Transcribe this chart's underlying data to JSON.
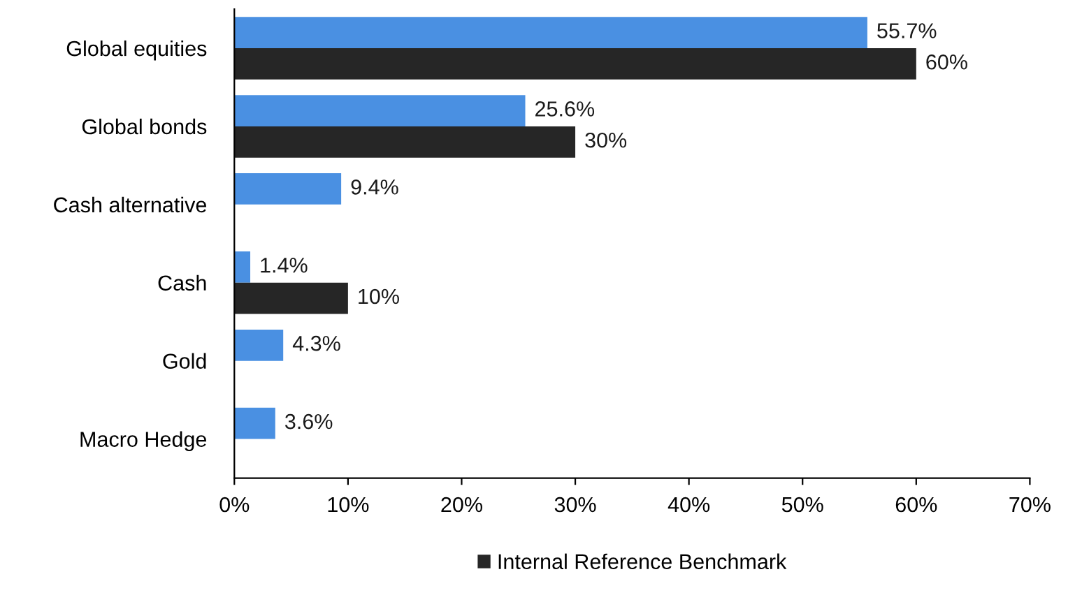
{
  "chart_data": {
    "type": "bar",
    "orientation": "horizontal",
    "categories": [
      "Global equities",
      "Global bonds",
      "Cash alternative",
      "Cash",
      "Gold",
      "Macro Hedge"
    ],
    "series": [
      {
        "color": "#4a90e2",
        "values": [
          55.7,
          25.6,
          9.4,
          1.4,
          4.3,
          3.6
        ],
        "value_labels": [
          "55.7%",
          "25.6%",
          "9.4%",
          "1.4%",
          "4.3%",
          "3.6%"
        ]
      },
      {
        "name": "Internal Reference Benchmark",
        "color": "#262626",
        "values": [
          60,
          30,
          null,
          10,
          null,
          null
        ],
        "value_labels": [
          "60%",
          "30%",
          null,
          "10%",
          null,
          null
        ]
      }
    ],
    "xlim": [
      0,
      70
    ],
    "xticks": [
      {
        "value": 0,
        "label": "0%"
      },
      {
        "value": 10,
        "label": "10%"
      },
      {
        "value": 20,
        "label": "20%"
      },
      {
        "value": 30,
        "label": "30%"
      },
      {
        "value": 40,
        "label": "40%"
      },
      {
        "value": 50,
        "label": "50%"
      },
      {
        "value": 60,
        "label": "60%"
      },
      {
        "value": 70,
        "label": "70%"
      }
    ],
    "grid": false,
    "legend": "bottom"
  }
}
